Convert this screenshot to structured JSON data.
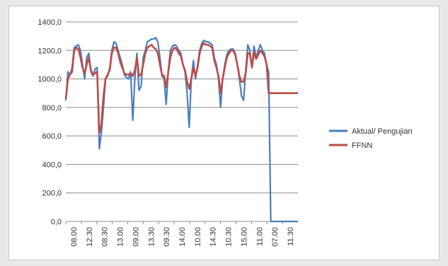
{
  "chart_data": {
    "type": "line",
    "y_ticks": [
      "0,0",
      "200,0",
      "400,0",
      "600,0",
      "800,0",
      "1000,0",
      "1200,0",
      "1400,0"
    ],
    "ylim": [
      0,
      1400
    ],
    "x_ticks": [
      "08.00",
      "12.30",
      "08.30",
      "13.00",
      "09.00",
      "13.30",
      "09.30",
      "14.00",
      "10.00",
      "14.30",
      "10.30",
      "15.00",
      "11.00",
      "07.00",
      "11.30"
    ],
    "grid": true,
    "legend_position": "right",
    "series": [
      {
        "name": "Aktual/ Pengujian",
        "color": "#4a7ebb",
        "values": [
          850,
          1050,
          1030,
          1080,
          1220,
          1230,
          1240,
          1200,
          1100,
          1000,
          1150,
          1180,
          1050,
          1020,
          1070,
          1080,
          510,
          620,
          800,
          1000,
          1020,
          1080,
          1200,
          1260,
          1250,
          1200,
          1150,
          1100,
          1030,
          1010,
          1000,
          1050,
          710,
          1000,
          1180,
          920,
          950,
          1150,
          1200,
          1260,
          1270,
          1280,
          1280,
          1290,
          1260,
          1150,
          1020,
          1000,
          820,
          1060,
          1200,
          1230,
          1240,
          1230,
          1200,
          1180,
          1100,
          1050,
          900,
          660,
          1000,
          1130,
          1000,
          1100,
          1200,
          1250,
          1270,
          1260,
          1260,
          1250,
          1240,
          1150,
          1100,
          1000,
          800,
          1000,
          1100,
          1170,
          1200,
          1210,
          1210,
          1180,
          1100,
          1000,
          880,
          850,
          1050,
          1240,
          1200,
          1080,
          1230,
          1150,
          1200,
          1240,
          1200,
          1180,
          1100,
          1050,
          0,
          0,
          0,
          0,
          0,
          0,
          0,
          0,
          0,
          0,
          0,
          0,
          0,
          0
        ]
      },
      {
        "name": "FFNN",
        "color": "#be4b48",
        "values": [
          860,
          1000,
          1030,
          1050,
          1200,
          1220,
          1210,
          1150,
          1080,
          1040,
          1100,
          1150,
          1060,
          1030,
          1040,
          1050,
          620,
          680,
          880,
          1000,
          1030,
          1060,
          1180,
          1220,
          1220,
          1180,
          1120,
          1080,
          1040,
          1030,
          1030,
          1040,
          1020,
          1060,
          1150,
          1020,
          1030,
          1100,
          1180,
          1220,
          1230,
          1240,
          1220,
          1210,
          1180,
          1100,
          1030,
          1020,
          940,
          1050,
          1150,
          1200,
          1220,
          1210,
          1180,
          1160,
          1100,
          1060,
          980,
          930,
          1000,
          1080,
          1020,
          1080,
          1180,
          1230,
          1250,
          1240,
          1240,
          1230,
          1220,
          1130,
          1080,
          1020,
          900,
          1000,
          1080,
          1150,
          1180,
          1200,
          1200,
          1170,
          1100,
          1020,
          980,
          980,
          1040,
          1180,
          1180,
          1080,
          1190,
          1140,
          1170,
          1200,
          1180,
          1160,
          1100,
          900,
          900,
          900,
          900,
          900,
          900,
          900,
          900,
          900,
          900,
          900,
          900,
          900,
          900,
          900
        ]
      }
    ]
  }
}
